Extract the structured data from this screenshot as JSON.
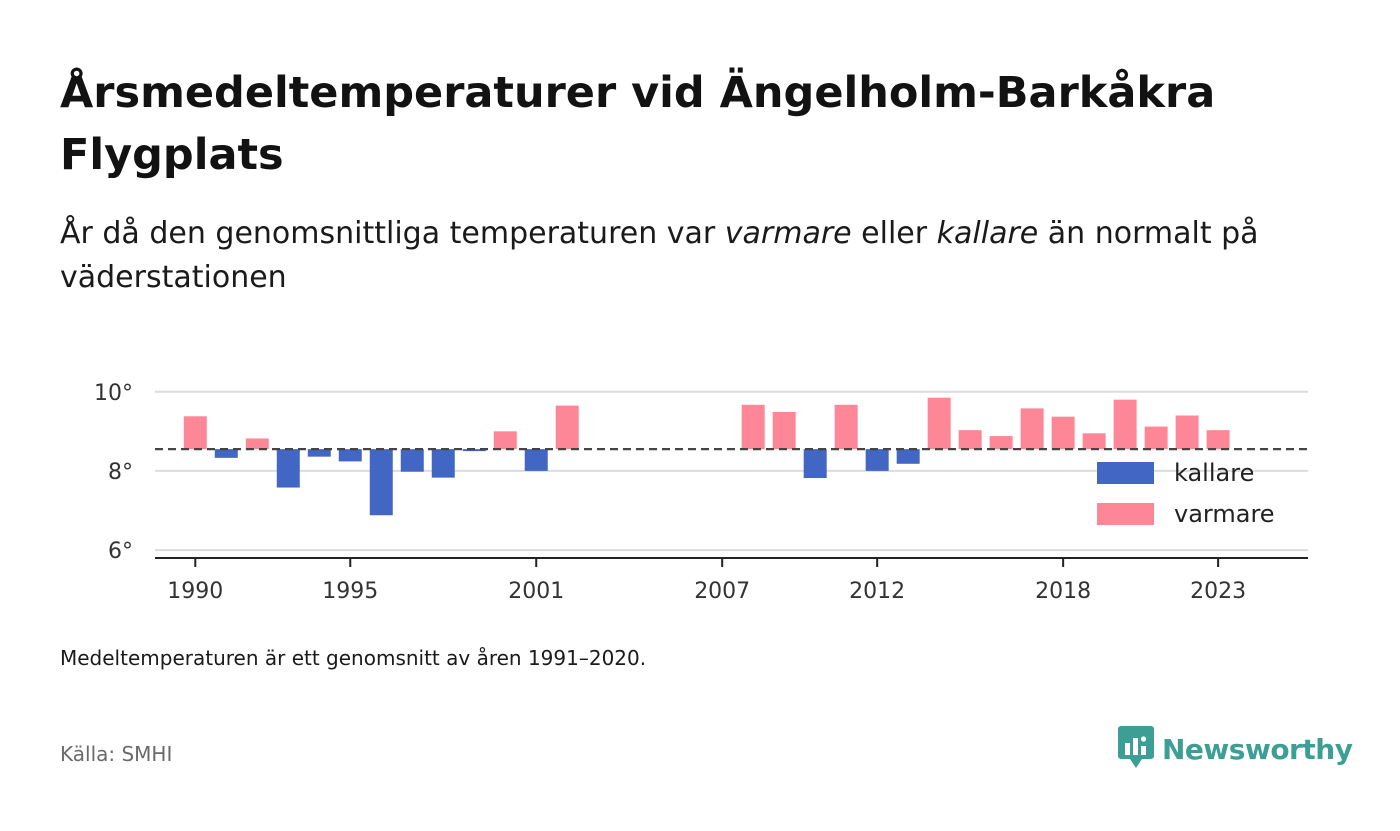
{
  "title": "Årsmedeltemperaturer vid Ängelholm-Barkåkra Flygplats",
  "subtitle": {
    "part1": "År då den genomsnittliga temperaturen var ",
    "warm_word": "varmare",
    "part2": " eller ",
    "cold_word": "kallare",
    "part3": " än normalt på väderstationen"
  },
  "note": "Medeltemperaturen är ett genomsnitt av åren 1991–2020.",
  "source": "Källa: SMHI",
  "brand": {
    "name": "Newsworthy",
    "color": "#3c9e94",
    "icon": "newsworthy-logo-icon"
  },
  "chart_data": {
    "type": "bar",
    "baseline": 8.55,
    "baseline_style": "dashed",
    "ylim": [
      5.8,
      10.6
    ],
    "yticks": [
      6,
      8,
      10
    ],
    "ytick_labels": [
      "6°",
      "8°",
      "10°"
    ],
    "xlim": [
      1988.7,
      2025.9
    ],
    "xticks": [
      1990,
      1995,
      2001,
      2007,
      2012,
      2018,
      2023
    ],
    "grid": true,
    "colors": {
      "kallare": "#4166c4",
      "varmare": "#fd8797"
    },
    "legend": {
      "position": "right",
      "items": [
        {
          "label": "kallare",
          "color": "#4166c4"
        },
        {
          "label": "varmare",
          "color": "#fd8797"
        }
      ]
    },
    "data": [
      {
        "year": 1990,
        "value": 9.38
      },
      {
        "year": 1991,
        "value": 8.33
      },
      {
        "year": 1992,
        "value": 8.82
      },
      {
        "year": 1993,
        "value": 7.58
      },
      {
        "year": 1994,
        "value": 8.36
      },
      {
        "year": 1995,
        "value": 8.24
      },
      {
        "year": 1996,
        "value": 6.88
      },
      {
        "year": 1997,
        "value": 7.98
      },
      {
        "year": 1998,
        "value": 7.83
      },
      {
        "year": 1999,
        "value": 8.5
      },
      {
        "year": 2000,
        "value": 9.0
      },
      {
        "year": 2001,
        "value": 8.0
      },
      {
        "year": 2002,
        "value": 9.65
      },
      {
        "year": 2008,
        "value": 9.67
      },
      {
        "year": 2009,
        "value": 9.49
      },
      {
        "year": 2010,
        "value": 7.82
      },
      {
        "year": 2011,
        "value": 9.67
      },
      {
        "year": 2012,
        "value": 8.0
      },
      {
        "year": 2013,
        "value": 8.18
      },
      {
        "year": 2014,
        "value": 9.85
      },
      {
        "year": 2015,
        "value": 9.03
      },
      {
        "year": 2016,
        "value": 8.88
      },
      {
        "year": 2017,
        "value": 9.58
      },
      {
        "year": 2018,
        "value": 9.37
      },
      {
        "year": 2019,
        "value": 8.95
      },
      {
        "year": 2020,
        "value": 9.8
      },
      {
        "year": 2021,
        "value": 9.12
      },
      {
        "year": 2022,
        "value": 9.4
      },
      {
        "year": 2023,
        "value": 9.03
      }
    ]
  }
}
